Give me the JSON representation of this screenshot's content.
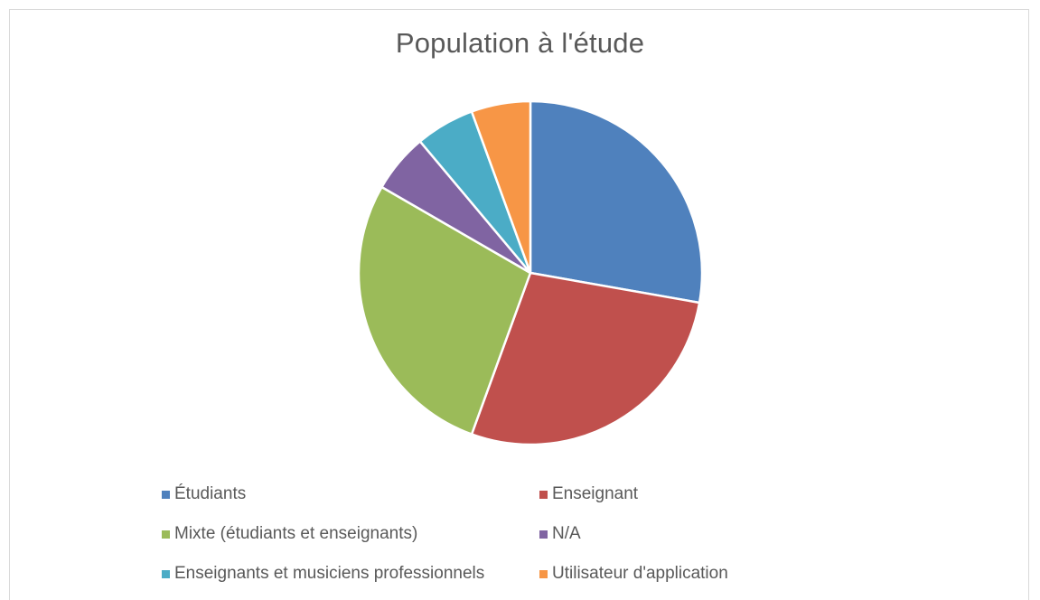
{
  "chart_data": {
    "type": "pie",
    "title": "Population à l'étude",
    "legend_position": "bottom",
    "categories": [
      "Étudiants",
      "Enseignant",
      "Mixte (étudiants et enseignants)",
      "N/A",
      "Enseignants et musiciens professionnels",
      "Utilisateur d'application"
    ],
    "values": [
      5,
      5,
      5,
      1,
      1,
      1
    ],
    "colors": [
      "#4f81bd",
      "#c0504d",
      "#9bbb59",
      "#8064a2",
      "#4bacc6",
      "#f79646"
    ]
  }
}
